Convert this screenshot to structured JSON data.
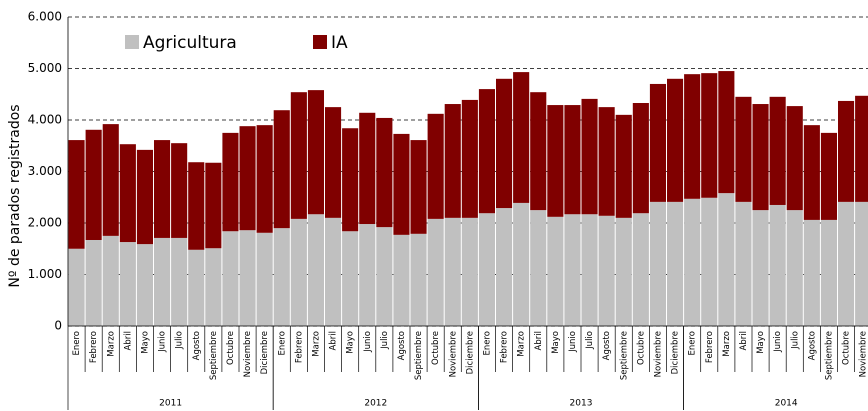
{
  "chart_data": {
    "type": "stacked-bar",
    "y_label": "Nº de parados registrados",
    "categories": [
      "Enero",
      "Febrero",
      "Marzo",
      "Abril",
      "Mayo",
      "Junio",
      "Julio",
      "Agosto",
      "Septiembre",
      "Octubre",
      "Noviembre",
      "Diciembre",
      "Enero",
      "Febrero",
      "Marzo",
      "Abril",
      "Mayo",
      "Junio",
      "Julio",
      "Agosto",
      "Septiembre",
      "Octubre",
      "Noviembre",
      "Diciembre",
      "Enero",
      "Febrero",
      "Marzo",
      "Abril",
      "Mayo",
      "Junio",
      "Julio",
      "Agosto",
      "Septiembre",
      "Octubre",
      "Noviembre",
      "Diciembre",
      "Enero",
      "Febrero",
      "Marzo",
      "Abril",
      "Mayo",
      "Junio",
      "Julio",
      "Agosto",
      "Septiembre",
      "Octubre",
      "Noviembre"
    ],
    "x_groups": [
      "2011",
      "2012",
      "2013",
      "2014"
    ],
    "series": [
      {
        "name": "Agricultura",
        "color": "#c0c0c0",
        "values": [
          1500,
          1670,
          1750,
          1630,
          1590,
          1710,
          1710,
          1480,
          1510,
          1840,
          1860,
          1810,
          1900,
          2080,
          2170,
          2100,
          1840,
          1980,
          1920,
          1770,
          1790,
          2080,
          2100,
          2100,
          2190,
          2290,
          2390,
          2250,
          2120,
          2170,
          2170,
          2140,
          2100,
          2190,
          2410,
          2410,
          2470,
          2490,
          2580,
          2410,
          2250,
          2350,
          2250,
          2060,
          2060,
          2410,
          2410
        ]
      },
      {
        "name": "IA",
        "color": "#800000",
        "values": [
          2110,
          2140,
          2170,
          1900,
          1830,
          1900,
          1840,
          1700,
          1660,
          1910,
          2020,
          2090,
          2290,
          2460,
          2410,
          2150,
          2000,
          2160,
          2120,
          1960,
          1820,
          2040,
          2210,
          2290,
          2410,
          2510,
          2540,
          2290,
          2170,
          2120,
          2240,
          2110,
          2000,
          2140,
          2290,
          2390,
          2420,
          2420,
          2370,
          2040,
          2060,
          2100,
          2020,
          1840,
          1690,
          1960,
          2060
        ]
      }
    ],
    "ylim": [
      0,
      6000
    ],
    "yticks": [
      0,
      {
        "value": 1000,
        "label": "1.000"
      },
      {
        "value": 2000,
        "label": "2.000"
      },
      {
        "value": 3000,
        "label": "3.000"
      },
      {
        "value": 4000,
        "label": "4.000"
      },
      {
        "value": 5000,
        "label": "5.000"
      },
      {
        "value": 6000,
        "label": "6.000"
      }
    ],
    "grid": true
  }
}
